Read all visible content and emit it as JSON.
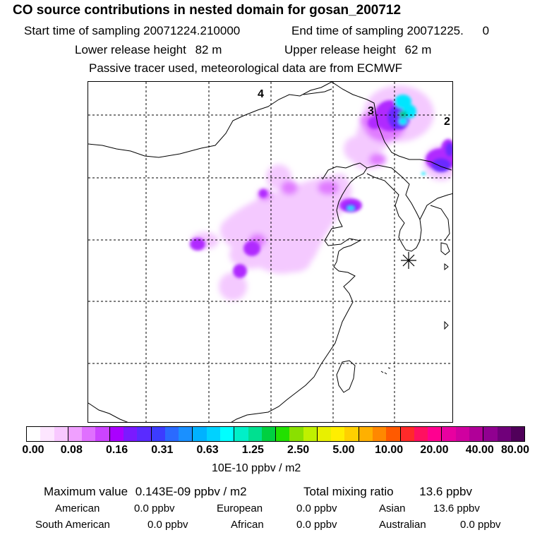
{
  "header": {
    "title": "CO  source contributions in nested domain for gosan_200712",
    "start_label": "Start time of sampling",
    "start_value": "20071224.210000",
    "end_label": "End time of sampling",
    "end_value": "20071225.",
    "end_extra": "0",
    "lower_label": "Lower release height",
    "lower_value": "82 m",
    "upper_label": "Upper release height",
    "upper_value": "62 m",
    "note": "Passive tracer used, meteorological data are from ECMWF"
  },
  "map": {
    "point_labels": [
      "4",
      "3",
      "2"
    ],
    "receptor_marker": "gosan receptor (asterisk)"
  },
  "colorbar": {
    "colors": [
      "#ffffff",
      "#fde6ff",
      "#f8c8ff",
      "#f0a0ff",
      "#e070ff",
      "#cc44ff",
      "#aa00ff",
      "#7a1aff",
      "#5a2bff",
      "#3c3cff",
      "#2a6aff",
      "#1a90ff",
      "#00b2ff",
      "#00d2ff",
      "#00ffff",
      "#00f0c8",
      "#00e090",
      "#00d040",
      "#22e000",
      "#8ae000",
      "#c0f000",
      "#e8f000",
      "#ffee00",
      "#ffd000",
      "#ffb000",
      "#ff8800",
      "#ff5a00",
      "#ff2a2a",
      "#ff1060",
      "#ff0090",
      "#e800a0",
      "#d000a0",
      "#b00098",
      "#900090",
      "#70007a",
      "#50005a"
    ],
    "ticks": [
      "0.00",
      "0.08",
      "0.16",
      "0.31",
      "0.63",
      "1.25",
      "2.50",
      "5.00",
      "10.00",
      "20.00",
      "40.00",
      "80.00"
    ],
    "units": "10E-10 ppbv / m2"
  },
  "stats": {
    "max_label": "Maximum value",
    "max_value": "0.143E-09 ppbv / m2",
    "total_label": "Total mixing ratio",
    "total_value": "13.6 ppbv"
  },
  "regions": {
    "american_label": "American",
    "american_value": "0.0 ppbv",
    "european_label": "European",
    "european_value": "0.0 ppbv",
    "asian_label": "Asian",
    "asian_value": "13.6 ppbv",
    "south_american_label": "South American",
    "south_american_value": "0.0 ppbv",
    "african_label": "African",
    "african_value": "0.0 ppbv",
    "australian_label": "Australian",
    "australian_value": "0.0 ppbv"
  }
}
